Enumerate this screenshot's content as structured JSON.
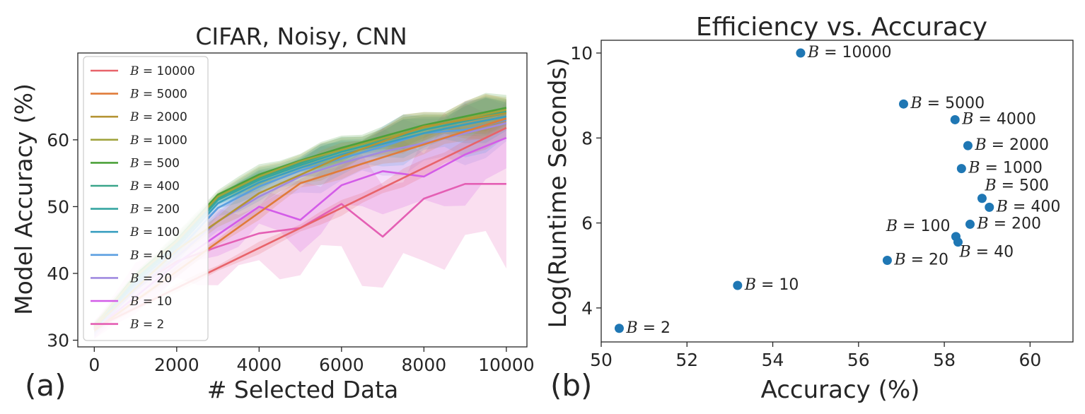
{
  "panels": {
    "a_label": "(a)",
    "b_label": "(b)"
  },
  "chart_data": [
    {
      "type": "line",
      "title": "CIFAR, Noisy, CNN",
      "xlabel": "# Selected Data",
      "ylabel": "Model Accuracy (%)",
      "xlim": [
        -400,
        10500
      ],
      "ylim": [
        29,
        73
      ],
      "xticks": [
        0,
        2000,
        4000,
        6000,
        8000,
        10000
      ],
      "yticks": [
        30,
        40,
        50,
        60
      ],
      "legend_position": "top-left",
      "series": [
        {
          "name": "B = 10000",
          "color": "#e8636a",
          "x": [
            0,
            10000
          ],
          "y": [
            31.8,
            61.8
          ],
          "band": 0.6,
          "dense": false
        },
        {
          "name": "B = 5000",
          "color": "#e07b39",
          "x": [
            0,
            5000,
            10000
          ],
          "y": [
            31.5,
            53.5,
            63.2
          ],
          "band": 0.7,
          "dense": false
        },
        {
          "name": "B = 2000",
          "color": "#b49434",
          "x": [
            0,
            2000,
            4000,
            6000,
            8000,
            10000
          ],
          "y": [
            32.0,
            43.5,
            52.0,
            57.5,
            62.0,
            64.0
          ],
          "band": 1.2,
          "dense": true
        },
        {
          "name": "B = 1000",
          "color": "#a0a33c",
          "x": [
            0,
            1000,
            2000,
            3000,
            4000,
            5000,
            6000,
            7000,
            8000,
            9000,
            10000
          ],
          "y": [
            32.1,
            39.5,
            44.8,
            51.5,
            54.5,
            56.8,
            58.5,
            60.2,
            61.8,
            63.2,
            64.5
          ],
          "band": 1.0,
          "dense": true
        },
        {
          "name": "B = 500",
          "color": "#4ca13a",
          "x": [
            0,
            1000,
            2000,
            3000,
            4000,
            5000,
            6000,
            7000,
            8000,
            9000,
            10000
          ],
          "y": [
            32.0,
            39.8,
            45.0,
            51.8,
            54.8,
            56.9,
            58.8,
            60.5,
            62.2,
            63.5,
            64.8
          ],
          "band": 1.0,
          "dense": true
        },
        {
          "name": "B = 400",
          "color": "#3aa58a",
          "x": [
            0,
            1000,
            2000,
            3000,
            4000,
            5000,
            6000,
            7000,
            8000,
            9000,
            10000
          ],
          "y": [
            31.9,
            39.3,
            44.5,
            51.3,
            54.3,
            56.5,
            58.6,
            60.1,
            61.9,
            63.1,
            64.2
          ],
          "band": 1.0,
          "dense": true
        },
        {
          "name": "B = 200",
          "color": "#35a5a0",
          "x": [
            0,
            1000,
            2000,
            3000,
            4000,
            5000,
            6000,
            7000,
            8000,
            9000,
            10000
          ],
          "y": [
            31.8,
            39.0,
            44.2,
            51.0,
            54.0,
            56.2,
            58.2,
            59.8,
            61.5,
            62.8,
            64.0
          ],
          "band": 1.0,
          "dense": true
        },
        {
          "name": "B = 100",
          "color": "#3a9fc0",
          "x": [
            0,
            1000,
            2000,
            3000,
            4000,
            5000,
            6000,
            7000,
            8000,
            9000,
            10000
          ],
          "y": [
            31.7,
            38.6,
            43.8,
            50.5,
            53.6,
            55.8,
            57.8,
            59.4,
            61.0,
            62.3,
            63.5
          ],
          "band": 1.2,
          "dense": true
        },
        {
          "name": "B = 40",
          "color": "#5a9ee0",
          "x": [
            0,
            1000,
            2000,
            3000,
            4000,
            5000,
            6000,
            7000,
            8000,
            9000,
            10000
          ],
          "y": [
            31.6,
            38.2,
            43.2,
            49.8,
            53.0,
            55.4,
            57.2,
            59.0,
            61.0,
            61.5,
            63.0
          ],
          "band": 1.6,
          "dense": true
        },
        {
          "name": "B = 20",
          "color": "#a08ae0",
          "x": [
            0,
            1000,
            2000,
            3000,
            4000,
            5000,
            6000,
            7000,
            8000,
            9000,
            10000
          ],
          "y": [
            31.5,
            37.5,
            42.5,
            47.8,
            51.5,
            54.5,
            56.5,
            58.2,
            59.5,
            61.0,
            62.5
          ],
          "band": 1.8,
          "dense": true
        },
        {
          "name": "B = 10",
          "color": "#d35ce8",
          "x": [
            0,
            1000,
            2000,
            3000,
            4000,
            5000,
            6000,
            7000,
            8000,
            9000,
            10000
          ],
          "y": [
            31.6,
            36.5,
            41.5,
            45.8,
            50.0,
            48.0,
            53.2,
            55.3,
            54.5,
            57.8,
            60.3
          ],
          "band": 2.8,
          "dense": true
        },
        {
          "name": "B = 2",
          "color": "#e45fb4",
          "x": [
            0,
            1000,
            2000,
            3000,
            4000,
            5000,
            6000,
            7000,
            8000,
            9000,
            10000
          ],
          "y": [
            31.5,
            37.8,
            41.8,
            44.0,
            46.0,
            46.8,
            50.4,
            45.5,
            51.2,
            53.4,
            53.4
          ],
          "band": 4.5,
          "dense": true
        }
      ]
    },
    {
      "type": "scatter",
      "title": "Efficiency vs. Accuracy",
      "xlabel": "Accuracy (%)",
      "ylabel": "Log(Runtime Seconds)",
      "xlim": [
        50,
        61
      ],
      "ylim": [
        3.2,
        10.3
      ],
      "xticks": [
        50,
        52,
        54,
        56,
        58,
        60
      ],
      "yticks": [
        4,
        6,
        8,
        10
      ],
      "point_color": "#1f77b4",
      "points": [
        {
          "label": "B = 10000",
          "x": 54.65,
          "y": 10.0,
          "anchor": "right"
        },
        {
          "label": "B = 5000",
          "x": 57.05,
          "y": 8.8,
          "anchor": "right"
        },
        {
          "label": "B = 4000",
          "x": 58.25,
          "y": 8.43,
          "anchor": "right"
        },
        {
          "label": "B = 2000",
          "x": 58.55,
          "y": 7.82,
          "anchor": "right"
        },
        {
          "label": "B = 1000",
          "x": 58.4,
          "y": 7.28,
          "anchor": "right"
        },
        {
          "label": "B = 500",
          "x": 58.88,
          "y": 6.58,
          "anchor": "above"
        },
        {
          "label": "B = 400",
          "x": 59.05,
          "y": 6.37,
          "anchor": "right"
        },
        {
          "label": "B = 200",
          "x": 58.6,
          "y": 5.97,
          "anchor": "right"
        },
        {
          "label": "B = 100",
          "x": 58.27,
          "y": 5.68,
          "anchor": "left"
        },
        {
          "label": "B = 40",
          "x": 58.32,
          "y": 5.55,
          "anchor": "below-right"
        },
        {
          "label": "B = 20",
          "x": 56.67,
          "y": 5.12,
          "anchor": "right"
        },
        {
          "label": "B = 10",
          "x": 53.18,
          "y": 4.53,
          "anchor": "right"
        },
        {
          "label": "B = 2",
          "x": 50.42,
          "y": 3.52,
          "anchor": "right"
        }
      ]
    }
  ]
}
